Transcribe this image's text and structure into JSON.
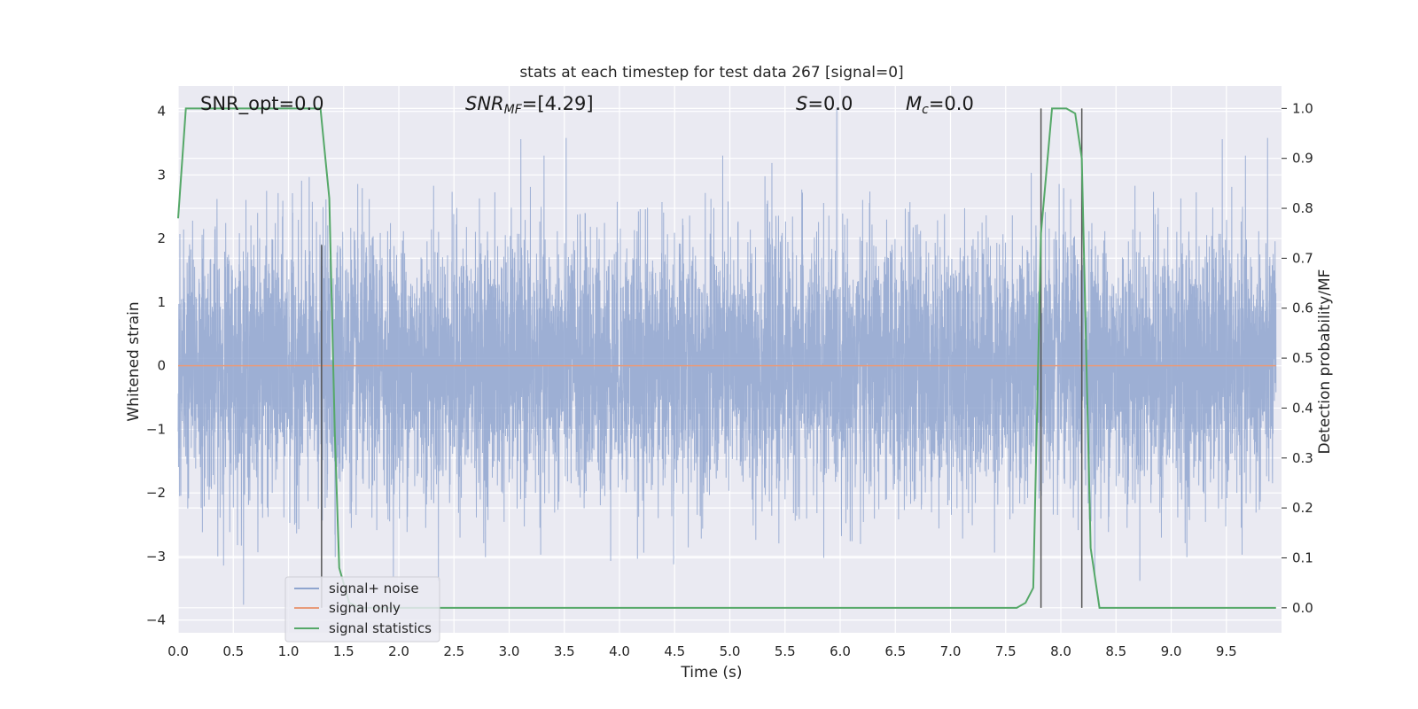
{
  "chart_data": {
    "type": "line",
    "title": "stats at each timestep for test data 267 [signal=0]",
    "xlabel": "Time (s)",
    "ylabel": "Whitened strain",
    "y2label": "Detection probability/MF",
    "xlim": [
      0,
      10
    ],
    "ylim": [
      -4.2,
      4.4
    ],
    "y2lim": [
      -0.05,
      1.045
    ],
    "xticks": [
      0.0,
      0.5,
      1.0,
      1.5,
      2.0,
      2.5,
      3.0,
      3.5,
      4.0,
      4.5,
      5.0,
      5.5,
      6.0,
      6.5,
      7.0,
      7.5,
      8.0,
      8.5,
      9.0,
      9.5
    ],
    "xtick_labels": [
      "0.0",
      "0.5",
      "1.0",
      "1.5",
      "2.0",
      "2.5",
      "3.0",
      "3.5",
      "4.0",
      "4.5",
      "5.0",
      "5.5",
      "6.0",
      "6.5",
      "7.0",
      "7.5",
      "8.0",
      "8.5",
      "9.0",
      "9.5"
    ],
    "yticks": [
      -4,
      -3,
      -2,
      -1,
      0,
      1,
      2,
      3,
      4
    ],
    "ytick_labels": [
      "−4",
      "−3",
      "−2",
      "−1",
      "0",
      "1",
      "2",
      "3",
      "4"
    ],
    "y2ticks": [
      0.0,
      0.1,
      0.2,
      0.3,
      0.4,
      0.5,
      0.6,
      0.7,
      0.8,
      0.9,
      1.0
    ],
    "y2tick_labels": [
      "0.0",
      "0.1",
      "0.2",
      "0.3",
      "0.4",
      "0.5",
      "0.6",
      "0.7",
      "0.8",
      "0.9",
      "1.0"
    ],
    "grid": true,
    "legend_position": "lower-left",
    "annotations": {
      "snr_opt": "SNR_opt=0.0",
      "snr_mf_symbol": "SNR",
      "snr_mf_sub": "MF",
      "snr_mf_value": "=[4.29]",
      "s_symbol": "S",
      "s_value": "=0.0",
      "mc_symbol": "M",
      "mc_sub": "c",
      "mc_value": "=0.0"
    },
    "series": [
      {
        "name": "signal+ noise",
        "color": "#8fa5cf",
        "description_values": {
          "samples": 8192,
          "std": 1.0,
          "mean": 0.0
        }
      },
      {
        "name": "signal only",
        "color": "#e89b7a",
        "constant_value": 0.0
      },
      {
        "name": "signal statistics",
        "color": "#55a868",
        "axis": "right",
        "x": [
          0.0,
          0.07,
          0.13,
          1.29,
          1.37,
          1.42,
          1.46,
          1.55,
          1.65,
          7.0,
          7.6,
          7.68,
          7.75,
          7.82,
          7.92,
          8.05,
          8.13,
          8.19,
          8.27,
          8.35,
          8.45,
          9.95
        ],
        "y": [
          0.78,
          1.0,
          1.0,
          1.0,
          0.82,
          0.35,
          0.08,
          0.01,
          0.0,
          0.0,
          0.0,
          0.01,
          0.04,
          0.75,
          1.0,
          1.0,
          0.99,
          0.9,
          0.12,
          0.0,
          0.0,
          0.0
        ]
      }
    ],
    "vertical_markers_x": [
      1.3,
      7.82,
      8.19
    ]
  }
}
